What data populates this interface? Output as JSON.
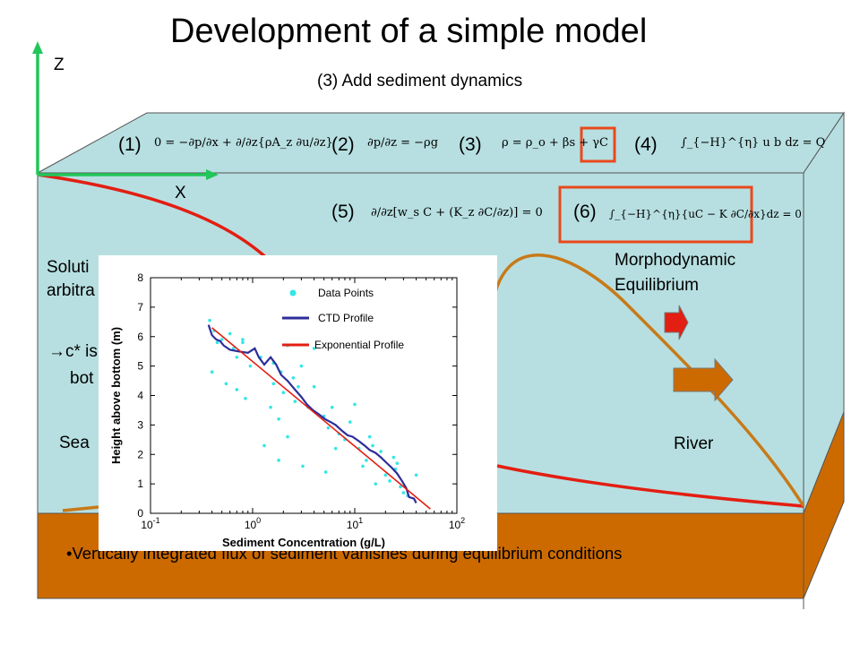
{
  "slide": {
    "title": "Development of a simple model",
    "subtitle": "(3) Add sediment dynamics",
    "colors": {
      "water": "#b7dfe1",
      "sediment": "#cc6a00",
      "red_line": "#e31e12",
      "brown_line": "#c87a18",
      "axis": "#22c65a",
      "box_highlight": "#e8491d"
    }
  },
  "axes": {
    "z_label": "Z",
    "x_label": "X"
  },
  "equations": [
    {
      "num": "(1)",
      "text": "0 = −∂p/∂x + ∂/∂z{ρA_z ∂u/∂z}"
    },
    {
      "num": "(2)",
      "text": "∂p/∂z = −ρg"
    },
    {
      "num": "(3)",
      "text": "ρ = ρ_o + βs + γC",
      "highlight": "γC"
    },
    {
      "num": "(4)",
      "text": "∫_{−H}^{η} u b dz = Q"
    },
    {
      "num": "(5)",
      "text": "∂/∂z[w_s C + (K_z ∂C/∂z)] = 0"
    },
    {
      "num": "(6)",
      "text": "∫_{−H}^{η}{uC − K ∂C/∂x}dz = 0",
      "highlight": "box"
    }
  ],
  "labels": {
    "solution_line1": "Soluti",
    "solution_line2": "arbitra",
    "cstar_line1": "c* is",
    "cstar_line2": "bot",
    "sea": "Sea",
    "river": "River",
    "morpho_line1": "Morphodynamic",
    "morpho_line2": "Equilibrium"
  },
  "bottom_text": "•Vertically integrated flux of sediment vanishes during equilibrium conditions",
  "chart_data": {
    "type": "scatter",
    "xlabel": "Sediment Concentration (g/L)",
    "ylabel": "Height above bottom (m)",
    "xscale": "log",
    "xlim": [
      0.1,
      100
    ],
    "ylim": [
      0,
      8
    ],
    "xticks": [
      "10^-1",
      "10^0",
      "10^1",
      "10^2"
    ],
    "xtick_values": [
      0.1,
      1,
      10,
      100
    ],
    "yticks": [
      "0",
      "1",
      "2",
      "3",
      "4",
      "5",
      "6",
      "7",
      "8"
    ],
    "legend": [
      "Data Points",
      "CTD Profile",
      "Exponential Profile"
    ],
    "legend_position": "top-right",
    "series": [
      {
        "name": "Data Points",
        "kind": "scatter",
        "color": "#33e6e6",
        "points": [
          [
            0.38,
            6.55
          ],
          [
            0.42,
            6.2
          ],
          [
            0.5,
            5.9
          ],
          [
            0.6,
            6.1
          ],
          [
            0.65,
            5.6
          ],
          [
            0.7,
            5.3
          ],
          [
            0.8,
            5.8
          ],
          [
            0.95,
            5.0
          ],
          [
            1.2,
            5.3
          ],
          [
            1.6,
            5.1
          ],
          [
            1.9,
            4.8
          ],
          [
            2.2,
            5.7
          ],
          [
            2.5,
            4.6
          ],
          [
            2.8,
            4.3
          ],
          [
            3.0,
            5.0
          ],
          [
            0.4,
            4.8
          ],
          [
            0.55,
            4.4
          ],
          [
            0.7,
            4.2
          ],
          [
            0.85,
            3.9
          ],
          [
            1.5,
            3.6
          ],
          [
            1.8,
            3.2
          ],
          [
            2.0,
            4.1
          ],
          [
            2.6,
            3.8
          ],
          [
            3.5,
            3.6
          ],
          [
            4.0,
            4.3
          ],
          [
            5.0,
            3.3
          ],
          [
            5.5,
            2.9
          ],
          [
            6.0,
            3.6
          ],
          [
            7.0,
            2.7
          ],
          [
            8.0,
            2.5
          ],
          [
            9.0,
            3.1
          ],
          [
            10.0,
            3.7
          ],
          [
            11.0,
            2.2
          ],
          [
            13.0,
            1.8
          ],
          [
            15.0,
            2.3
          ],
          [
            18.0,
            2.1
          ],
          [
            20.0,
            1.3
          ],
          [
            25.0,
            1.5
          ],
          [
            28.0,
            0.9
          ],
          [
            30.0,
            0.7
          ],
          [
            22.0,
            1.1
          ],
          [
            16.0,
            1.0
          ],
          [
            40.0,
            1.3
          ],
          [
            12.0,
            1.6
          ],
          [
            4.0,
            5.6
          ],
          [
            1.6,
            4.4
          ],
          [
            2.2,
            2.6
          ],
          [
            1.3,
            2.3
          ],
          [
            0.8,
            5.9
          ],
          [
            6.5,
            2.2
          ],
          [
            1.8,
            1.8
          ],
          [
            3.1,
            1.6
          ],
          [
            14.0,
            2.6
          ],
          [
            24.0,
            1.9
          ],
          [
            0.45,
            5.8
          ],
          [
            33.0,
            0.6
          ],
          [
            26.0,
            1.7
          ],
          [
            5.2,
            1.4
          ]
        ]
      },
      {
        "name": "CTD Profile",
        "kind": "line",
        "color": "#2c2d9a",
        "points": [
          [
            0.37,
            6.4
          ],
          [
            0.4,
            6.05
          ],
          [
            0.44,
            5.9
          ],
          [
            0.48,
            5.85
          ],
          [
            0.52,
            5.7
          ],
          [
            0.6,
            5.55
          ],
          [
            0.72,
            5.5
          ],
          [
            0.9,
            5.45
          ],
          [
            1.05,
            5.6
          ],
          [
            1.15,
            5.3
          ],
          [
            1.3,
            5.05
          ],
          [
            1.5,
            5.3
          ],
          [
            1.7,
            5.05
          ],
          [
            1.9,
            4.7
          ],
          [
            2.2,
            4.5
          ],
          [
            2.6,
            4.2
          ],
          [
            3.0,
            3.95
          ],
          [
            3.4,
            3.7
          ],
          [
            3.9,
            3.5
          ],
          [
            4.5,
            3.35
          ],
          [
            5.1,
            3.2
          ],
          [
            5.8,
            3.1
          ],
          [
            6.5,
            3.0
          ],
          [
            7.5,
            2.8
          ],
          [
            8.5,
            2.65
          ],
          [
            9.5,
            2.6
          ],
          [
            11.0,
            2.45
          ],
          [
            12.5,
            2.3
          ],
          [
            14.0,
            2.15
          ],
          [
            16.0,
            2.05
          ],
          [
            18.0,
            1.9
          ],
          [
            20.0,
            1.75
          ],
          [
            23.0,
            1.55
          ],
          [
            26.0,
            1.35
          ],
          [
            29.0,
            1.1
          ],
          [
            32.0,
            0.85
          ],
          [
            34.0,
            0.55
          ],
          [
            38.0,
            0.5
          ],
          [
            40.0,
            0.35
          ]
        ]
      },
      {
        "name": "Exponential Profile",
        "kind": "line",
        "color": "#e31e12",
        "points": [
          [
            0.4,
            6.3
          ],
          [
            55.0,
            0.15
          ]
        ]
      }
    ]
  }
}
